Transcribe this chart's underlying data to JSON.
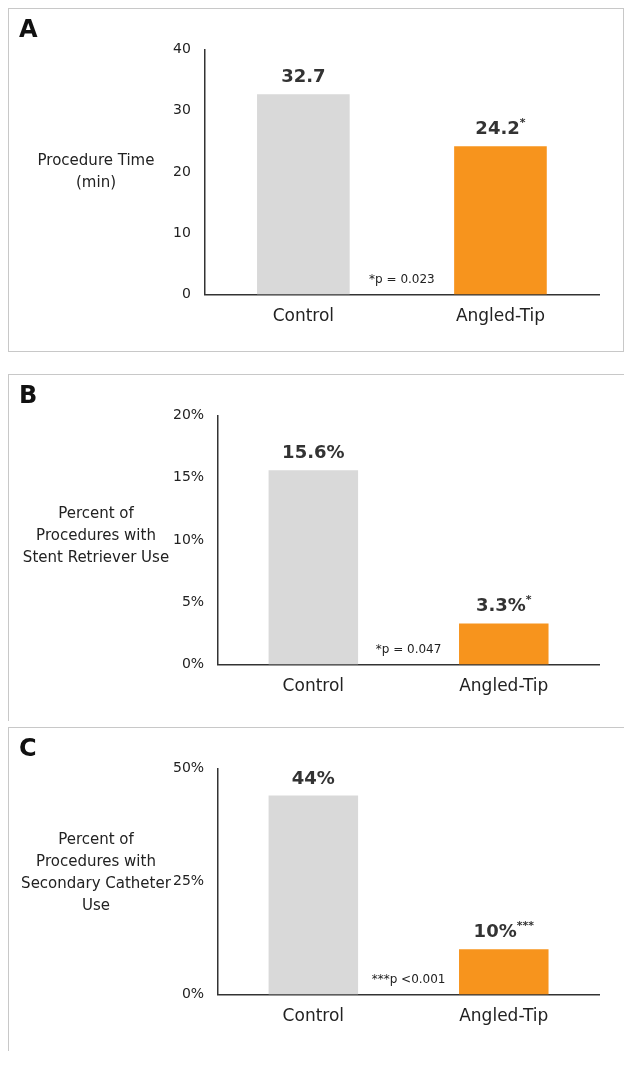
{
  "chart_data": [
    {
      "type": "bar",
      "title": "A",
      "ylabel": "Procedure Time (min)",
      "categories": [
        "Control",
        "Angled-Tip"
      ],
      "values": [
        32.7,
        24.2
      ],
      "colors": [
        "#d9d9d9",
        "#f7941d"
      ],
      "value_labels": [
        "32.7",
        "24.2$^{*}$"
      ],
      "ylim": [
        0,
        40
      ],
      "yticks": [
        0,
        10,
        20,
        30,
        40
      ],
      "grid": false,
      "legend": false,
      "annotations": [
        "*p = 0.023"
      ]
    },
    {
      "type": "bar",
      "title": "B",
      "ylabel": "Percent of Procedures with Stent Retriever Use",
      "categories": [
        "Control",
        "Angled-Tip"
      ],
      "values": [
        15.6,
        3.3
      ],
      "colors": [
        "#d9d9d9",
        "#f7941d"
      ],
      "value_labels": [
        "15.6%",
        "3.3%$^{*}$"
      ],
      "ylim": [
        0,
        20
      ],
      "yticks": [
        {
          "value": 0,
          "label": "0%"
        },
        {
          "value": 5,
          "label": "5%"
        },
        {
          "value": 10,
          "label": "10%"
        },
        {
          "value": 15,
          "label": "15%"
        },
        {
          "value": 20,
          "label": "20%"
        }
      ],
      "grid": false,
      "legend": false,
      "annotations": [
        "*p = 0.047"
      ]
    },
    {
      "type": "bar",
      "title": "C",
      "ylabel": "Percent of Procedures with Secondary Catheter Use",
      "categories": [
        "Control",
        "Angled-Tip"
      ],
      "values": [
        44,
        10
      ],
      "colors": [
        "#d9d9d9",
        "#f7941d"
      ],
      "value_labels": [
        "44%",
        "10%$^{***}$"
      ],
      "ylim": [
        0,
        50
      ],
      "yticks": [
        {
          "value": 0,
          "label": "0%"
        },
        {
          "value": 25,
          "label": "25%"
        },
        {
          "value": 50,
          "label": "50%"
        }
      ],
      "grid": false,
      "legend": false,
      "annotations": [
        "***p <0.001"
      ]
    }
  ]
}
